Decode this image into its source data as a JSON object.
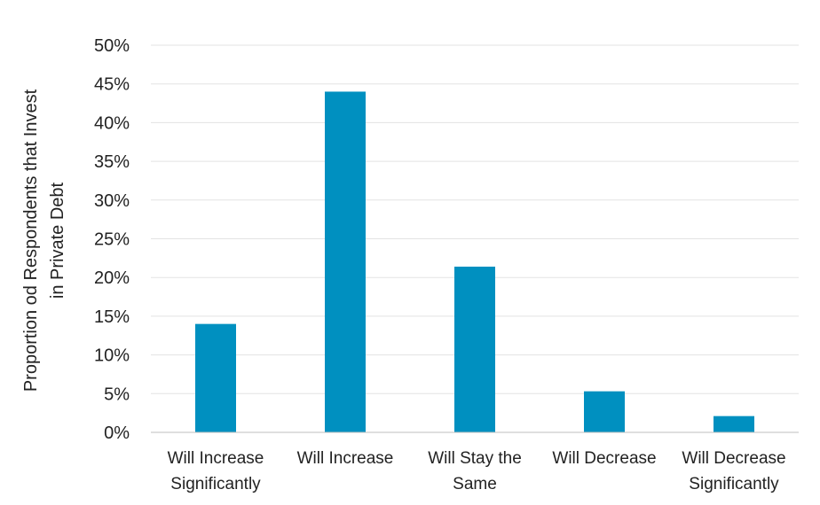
{
  "chart_data": {
    "type": "bar",
    "title": "",
    "xlabel": "",
    "ylabel_lines": [
      "Proportion od Respondents that Invest",
      "in Private Debt"
    ],
    "ylim": [
      0,
      0.5
    ],
    "ytick_values": [
      0,
      0.05,
      0.1,
      0.15,
      0.2,
      0.25,
      0.3,
      0.35,
      0.4,
      0.45,
      0.5
    ],
    "ytick_labels": [
      "0%",
      "5%",
      "10%",
      "15%",
      "20%",
      "25%",
      "30%",
      "35%",
      "40%",
      "45%",
      "50%"
    ],
    "grid": true,
    "categories": [
      [
        "Will Increase",
        "Significantly"
      ],
      [
        "Will Increase"
      ],
      [
        "Will Stay the",
        "Same"
      ],
      [
        "Will Decrease"
      ],
      [
        "Will Decrease",
        "Significantly"
      ]
    ],
    "values": [
      0.14,
      0.44,
      0.214,
      0.053,
      0.021
    ],
    "bar_color": "#0090c0"
  }
}
